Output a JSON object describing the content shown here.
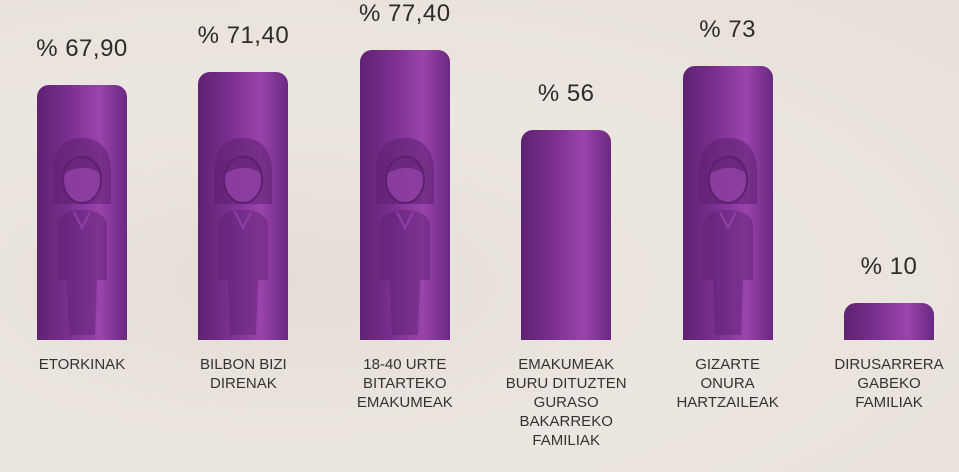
{
  "chart_data": {
    "type": "bar",
    "categories": [
      "ETORKINAK",
      "BILBON BIZI\nDIRENAK",
      "18-40 URTE\nBITARTEKO\nEMAKUMEAK",
      "EMAKUMEAK\nBURU DITUZTEN\nGURASO\nBAKARREKO\nFAMILIAK",
      "GIZARTE\nONURA\nHARTZAILEAK",
      "DIRUSARRERA\nGABEKO\nFAMILIAK"
    ],
    "values": [
      67.9,
      71.4,
      77.4,
      56,
      73,
      10
    ],
    "value_labels": [
      "% 67,90",
      "% 71,40",
      "% 77,40",
      "% 56",
      "% 73",
      "% 10"
    ],
    "color": "#7a2f8f"
  }
}
